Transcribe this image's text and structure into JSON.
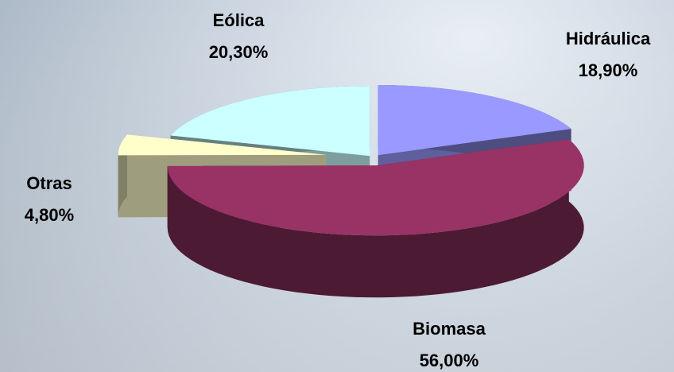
{
  "chart_data": {
    "type": "pie",
    "categories": [
      "Hidráulica",
      "Biomasa",
      "Otras",
      "Eólica"
    ],
    "values": [
      18.9,
      56.0,
      4.8,
      20.3
    ],
    "value_labels": [
      "18,90%",
      "56,00%",
      "4,80%",
      "20,30%"
    ],
    "colors": [
      "#9999ff",
      "#993366",
      "#ffffcc",
      "#ccffff"
    ]
  }
}
